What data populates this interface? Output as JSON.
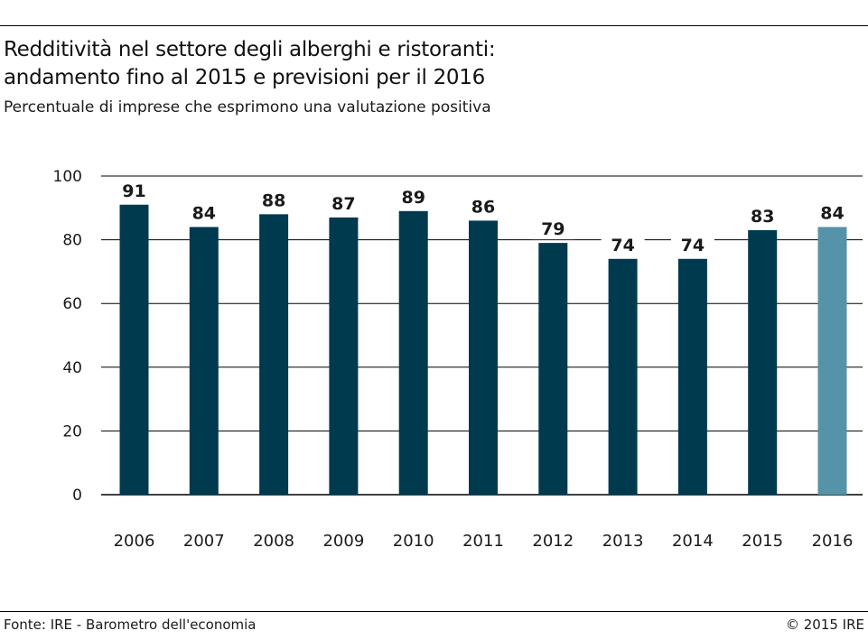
{
  "header": {
    "title_line1": "Redditività nel settore degli alberghi e ristoranti:",
    "title_line2": "andamento fino al 2015 e previsioni per il 2016",
    "subtitle": "Percentuale di imprese che esprimono una valutazione positiva"
  },
  "footer": {
    "source": "Fonte: IRE - Barometro dell'economia",
    "copyright": "© 2015 IRE"
  },
  "colors": {
    "bar_actual": "#003a4f",
    "bar_forecast": "#5593a8",
    "grid": "#000000",
    "text": "#1a1a1a"
  },
  "chart_data": {
    "type": "bar",
    "title": "Redditività nel settore degli alberghi e ristoranti: andamento fino al 2015 e previsioni per il 2016",
    "subtitle": "Percentuale di imprese che esprimono una valutazione positiva",
    "categories": [
      "2006",
      "2007",
      "2008",
      "2009",
      "2010",
      "2011",
      "2012",
      "2013",
      "2014",
      "2015",
      "2016"
    ],
    "values": [
      91,
      84,
      88,
      87,
      89,
      86,
      79,
      74,
      74,
      83,
      84
    ],
    "labels": [
      "91",
      "84",
      "88",
      "87",
      "89",
      "86",
      "79",
      "74",
      "74",
      "83",
      "84"
    ],
    "forecast": [
      false,
      false,
      false,
      false,
      false,
      false,
      false,
      false,
      false,
      false,
      true
    ],
    "ylim": [
      0,
      100
    ],
    "yticks": [
      0,
      20,
      40,
      60,
      80,
      100
    ],
    "xlabel": "",
    "ylabel": "",
    "grid": true,
    "legend": "none"
  }
}
